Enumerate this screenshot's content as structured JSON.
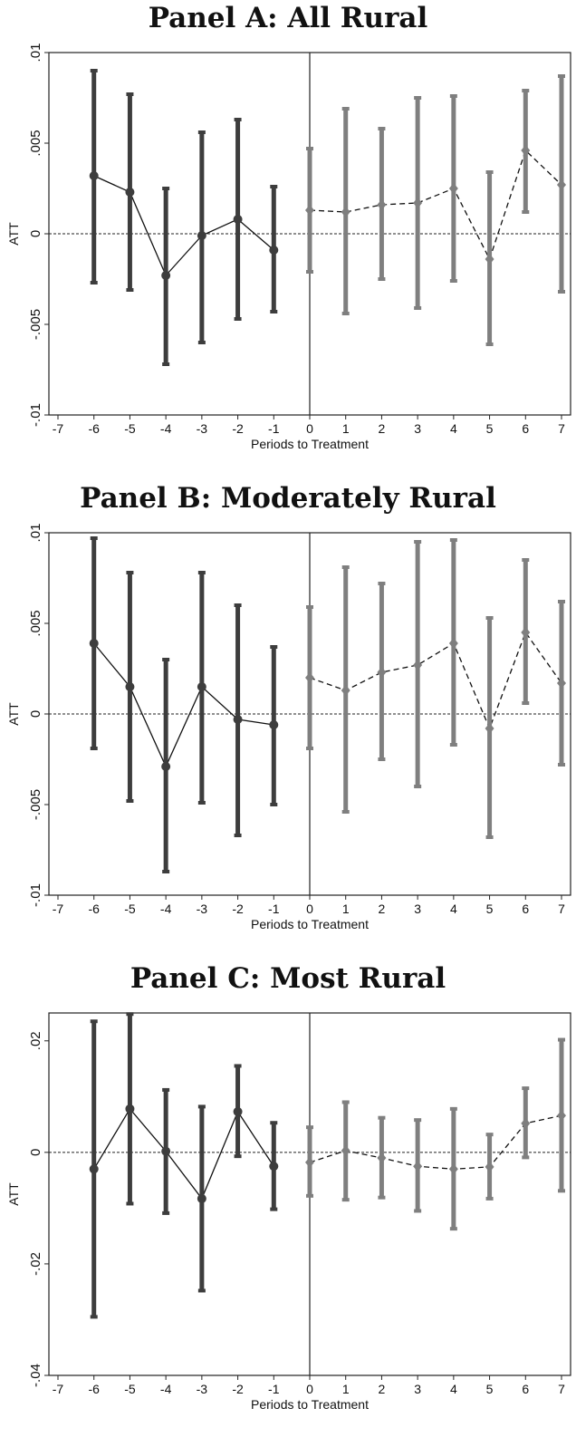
{
  "chart_data": [
    {
      "type": "errorbar",
      "title": "Panel A: All Rural",
      "xlabel": "Periods to Treatment",
      "ylabel": "ATT",
      "xlim": [
        -7,
        7
      ],
      "ylim": [
        -0.01,
        0.01
      ],
      "yticks": [
        ".01",
        ".005",
        "0",
        "-.005",
        "-.01"
      ],
      "yticks_values": [
        0.01,
        0.005,
        0,
        -0.005,
        -0.01
      ],
      "xticks": [
        "-7",
        "-6",
        "-5",
        "-4",
        "-3",
        "-2",
        "-1",
        "0",
        "1",
        "2",
        "3",
        "4",
        "5",
        "6",
        "7"
      ],
      "colors": {
        "pre": "#3d3d3d",
        "post": "#7f7f7f"
      },
      "series": [
        {
          "x": [
            -6,
            -5,
            -4,
            -3,
            -2,
            -1
          ],
          "y": [
            0.0032,
            0.0023,
            -0.0023,
            -0.0001,
            0.0008,
            -0.0009
          ],
          "lo": [
            -0.0027,
            -0.0031,
            -0.0072,
            -0.006,
            -0.0047,
            -0.0043
          ],
          "hi": [
            0.009,
            0.0077,
            0.0025,
            0.0056,
            0.0063,
            0.0026
          ],
          "style": "solid",
          "marker": "circle",
          "group": "pre"
        },
        {
          "x": [
            0,
            1,
            2,
            3,
            4,
            5,
            6,
            7
          ],
          "y": [
            0.0013,
            0.0012,
            0.0016,
            0.0017,
            0.0025,
            -0.0014,
            0.0046,
            0.0027
          ],
          "lo": [
            -0.0021,
            -0.0044,
            -0.0025,
            -0.0041,
            -0.0026,
            -0.0061,
            0.0012,
            -0.0032
          ],
          "hi": [
            0.0047,
            0.0069,
            0.0058,
            0.0075,
            0.0076,
            0.0034,
            0.0079,
            0.0087
          ],
          "style": "dashed",
          "marker": "diamond",
          "group": "post"
        }
      ]
    },
    {
      "type": "errorbar",
      "title": "Panel B: Moderately Rural",
      "xlabel": "Periods to Treatment",
      "ylabel": "ATT",
      "xlim": [
        -7,
        7
      ],
      "ylim": [
        -0.01,
        0.01
      ],
      "yticks": [
        ".01",
        ".005",
        "0",
        "-.005",
        "-.01"
      ],
      "yticks_values": [
        0.01,
        0.005,
        0,
        -0.005,
        -0.01
      ],
      "xticks": [
        "-7",
        "-6",
        "-5",
        "-4",
        "-3",
        "-2",
        "-1",
        "0",
        "1",
        "2",
        "3",
        "4",
        "5",
        "6",
        "7"
      ],
      "colors": {
        "pre": "#3d3d3d",
        "post": "#7f7f7f"
      },
      "series": [
        {
          "x": [
            -6,
            -5,
            -4,
            -3,
            -2,
            -1
          ],
          "y": [
            0.0039,
            0.0015,
            -0.0029,
            0.0015,
            -0.0003,
            -0.0006
          ],
          "lo": [
            -0.0019,
            -0.0048,
            -0.0087,
            -0.0049,
            -0.0067,
            -0.005
          ],
          "hi": [
            0.0097,
            0.0078,
            0.003,
            0.0078,
            0.006,
            0.0037
          ],
          "style": "solid",
          "marker": "circle",
          "group": "pre"
        },
        {
          "x": [
            0,
            1,
            2,
            3,
            4,
            5,
            6,
            7
          ],
          "y": [
            0.002,
            0.0013,
            0.0023,
            0.0027,
            0.0039,
            -0.0008,
            0.0045,
            0.0017
          ],
          "lo": [
            -0.0019,
            -0.0054,
            -0.0025,
            -0.004,
            -0.0017,
            -0.0068,
            0.0006,
            -0.0028
          ],
          "hi": [
            0.0059,
            0.0081,
            0.0072,
            0.0095,
            0.0096,
            0.0053,
            0.0085,
            0.0062
          ],
          "style": "dashed",
          "marker": "diamond",
          "group": "post"
        }
      ]
    },
    {
      "type": "errorbar",
      "title": "Panel C: Most Rural",
      "xlabel": "Periods to Treatment",
      "ylabel": "ATT",
      "xlim": [
        -7,
        7
      ],
      "ylim": [
        -0.04,
        0.025
      ],
      "yticks": [
        ".02",
        "0",
        "-.02",
        "-.04"
      ],
      "yticks_values": [
        0.02,
        0,
        -0.02,
        -0.04
      ],
      "xticks": [
        "-7",
        "-6",
        "-5",
        "-4",
        "-3",
        "-2",
        "-1",
        "0",
        "1",
        "2",
        "3",
        "4",
        "5",
        "6",
        "7"
      ],
      "colors": {
        "pre": "#3d3d3d",
        "post": "#7f7f7f"
      },
      "series": [
        {
          "x": [
            -6,
            -5,
            -4,
            -3,
            -2,
            -1
          ],
          "y": [
            -0.003,
            0.0078,
            0.0002,
            -0.0083,
            0.0073,
            -0.0025
          ],
          "lo": [
            -0.0295,
            -0.0092,
            -0.0109,
            -0.0248,
            -0.0007,
            -0.0102
          ],
          "hi": [
            0.0235,
            0.0248,
            0.0112,
            0.0082,
            0.0155,
            0.0053
          ],
          "style": "solid",
          "marker": "circle",
          "group": "pre"
        },
        {
          "x": [
            0,
            1,
            2,
            3,
            4,
            5,
            6,
            7
          ],
          "y": [
            -0.0018,
            0.0003,
            -0.001,
            -0.0025,
            -0.003,
            -0.0026,
            0.0052,
            0.0066
          ],
          "lo": [
            -0.0078,
            -0.0085,
            -0.0081,
            -0.0105,
            -0.0137,
            -0.0083,
            -0.0009,
            -0.0069
          ],
          "hi": [
            0.0045,
            0.009,
            0.0062,
            0.0058,
            0.0078,
            0.0032,
            0.0115,
            0.0202
          ],
          "style": "dashed",
          "marker": "diamond",
          "group": "post"
        }
      ]
    }
  ]
}
